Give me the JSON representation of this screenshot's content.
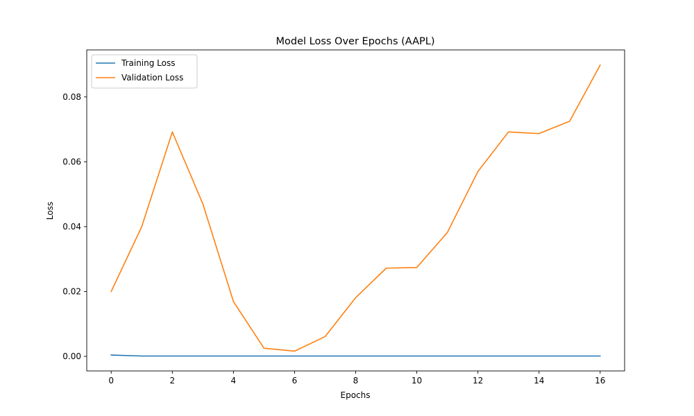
{
  "chart_data": {
    "type": "line",
    "title": "Model Loss Over Epochs (AAPL)",
    "xlabel": "Epochs",
    "ylabel": "Loss",
    "xlim": [
      -0.8,
      16.8
    ],
    "ylim": [
      -0.0045,
      0.0945
    ],
    "xticks": [
      0,
      2,
      4,
      6,
      8,
      10,
      12,
      14,
      16
    ],
    "yticks": [
      0.0,
      0.02,
      0.04,
      0.06,
      0.08
    ],
    "ytick_labels": [
      "0.00",
      "0.02",
      "0.04",
      "0.06",
      "0.08"
    ],
    "grid": false,
    "legend_position": "upper-left",
    "x": [
      0,
      1,
      2,
      3,
      4,
      5,
      6,
      7,
      8,
      9,
      10,
      11,
      12,
      13,
      14,
      15,
      16
    ],
    "series": [
      {
        "name": "Training Loss",
        "color": "#1f77b4",
        "values": [
          0.0004,
          0.0001,
          0.0001,
          0.0001,
          0.0001,
          0.0001,
          0.0001,
          0.0001,
          0.0001,
          0.0001,
          0.0001,
          0.0001,
          0.0001,
          0.0001,
          0.0001,
          0.0001,
          0.0001
        ]
      },
      {
        "name": "Validation Loss",
        "color": "#ff7f0e",
        "values": [
          0.02,
          0.04,
          0.0692,
          0.047,
          0.0169,
          0.0025,
          0.0016,
          0.0061,
          0.0181,
          0.0272,
          0.0274,
          0.0382,
          0.057,
          0.0692,
          0.0687,
          0.0725,
          0.0898
        ]
      }
    ]
  }
}
